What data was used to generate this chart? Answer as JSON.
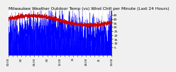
{
  "title": "Milwaukee Weather Outdoor Temp (vs) Wind Chill per Minute (Last 24 Hours)",
  "title_fontsize": 4.2,
  "title_color": "#000000",
  "background_color": "#f0f0f0",
  "plot_bg_color": "#ffffff",
  "blue_color": "#0000ff",
  "red_color": "#cc0000",
  "grid_color": "#888888",
  "ylim": [
    -5,
    50
  ],
  "yticks": [
    5,
    10,
    15,
    20,
    25,
    30,
    35,
    40,
    45
  ],
  "ytick_fontsize": 3.2,
  "xtick_fontsize": 2.8,
  "n_points": 1440,
  "temp_base": 20,
  "temp_noise_scale": 14,
  "temp_trend_amp": 5,
  "wind_chill_base": 38,
  "wind_chill_amp": 6,
  "wind_chill_noise": 1.2
}
